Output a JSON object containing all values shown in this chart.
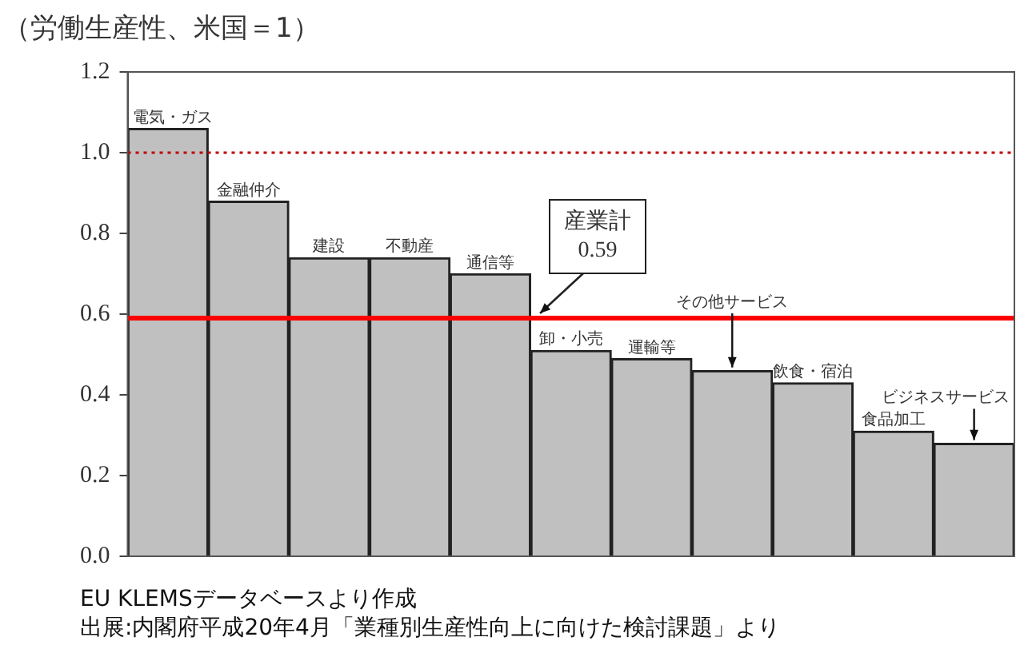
{
  "chart_data": {
    "type": "bar",
    "ylabel": "（労働生産性、米国＝1）",
    "categories": [
      "電気・ガス",
      "金融仲介",
      "建設",
      "不動産",
      "通信等",
      "卸・小売",
      "運輸等",
      "その他サービス",
      "飲食・宿泊",
      "食品加工",
      "ビジネスサービス"
    ],
    "values": [
      1.06,
      0.88,
      0.74,
      0.74,
      0.7,
      0.51,
      0.49,
      0.46,
      0.43,
      0.31,
      0.28
    ],
    "color": "#c0c0c0",
    "ylim": [
      0,
      1.2
    ],
    "yticks": [
      {
        "value": 0,
        "label": "0.0"
      },
      0.2,
      0.4,
      0.6,
      0.8,
      {
        "value": 1,
        "label": "1.0"
      },
      1.2
    ],
    "tick_labels": "y",
    "grid": false,
    "legend": false,
    "ref_lines": [
      {
        "axis": "y",
        "value": 1,
        "color": "#c00000",
        "line_style": "dotted"
      },
      {
        "axis": "y",
        "value": 0.59,
        "label": "産業計\n0.59",
        "color": "#ff0000",
        "line_style": "solid"
      }
    ],
    "annotations": [
      "EU KLEMSデータベースより作成",
      "出展:内閣府平成20年4月「業種別生産性向上に向けた検討課題」より"
    ]
  }
}
